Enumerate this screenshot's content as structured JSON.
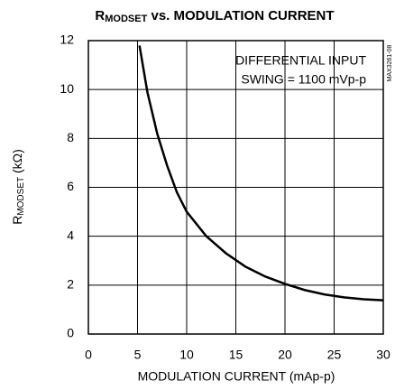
{
  "chart_data": {
    "type": "line",
    "title": [
      "R",
      "MODSET",
      " vs. MODULATION CURRENT"
    ],
    "y_label": [
      "R",
      "MODSET",
      " (kΩ)"
    ],
    "x_label": "MODULATION CURRENT (mAp-p)",
    "annotations": [
      "DIFFERENTIAL INPUT",
      "SWING = 1100 mVp-p"
    ],
    "figure_id": "MAX3261-08",
    "x": [
      5.2,
      6,
      7,
      8,
      9,
      10,
      12,
      14,
      16,
      18,
      20,
      22,
      24,
      26,
      28,
      30
    ],
    "series": [
      {
        "color": "#000000",
        "values": [
          11.8,
          9.9,
          8.2,
          6.9,
          5.8,
          5.0,
          4.0,
          3.3,
          2.75,
          2.35,
          2.05,
          1.8,
          1.62,
          1.5,
          1.42,
          1.38
        ]
      }
    ],
    "xlim": [
      0,
      30
    ],
    "ylim": [
      0,
      12
    ],
    "xticks": [
      0,
      5,
      10,
      15,
      20,
      25,
      30
    ],
    "yticks": [
      0,
      2,
      4,
      6,
      8,
      10,
      12
    ],
    "grid": true
  }
}
